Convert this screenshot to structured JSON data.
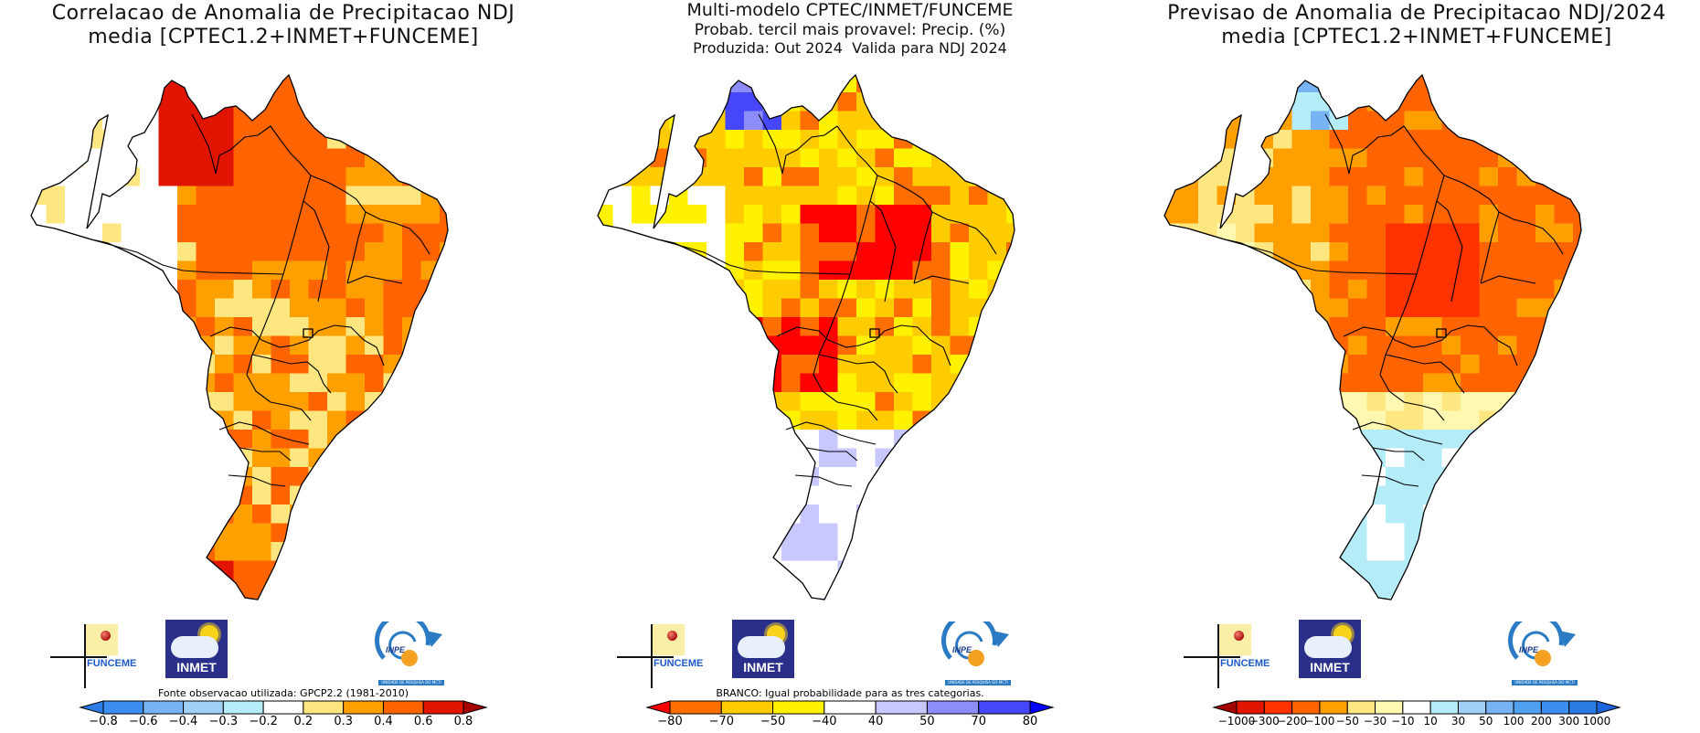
{
  "panels": [
    {
      "id": "correlation",
      "title_lines": [
        "Correlacao de Anomalia de Precipitacao NDJ",
        "media [CPTEC1.2+INMET+FUNCEME]"
      ],
      "colorbar_caption": "Fonte observacao utilizada: GPCP2.2 (1981-2010)",
      "colorbar": {
        "labels": [
          "-0.8",
          "-0.6",
          "-0.4",
          "-0.3",
          "-0.2",
          "0.2",
          "0.3",
          "0.4",
          "0.6",
          "0.8"
        ],
        "left_arrow": "#2a7be4",
        "colors": [
          "#3c8ff0",
          "#78b4f4",
          "#9ed0f8",
          "#b4ecf8",
          "#ffffff",
          "#fee680",
          "#ffa000",
          "#ff6400",
          "#e11400"
        ],
        "right_arrow": "#a50000"
      }
    },
    {
      "id": "tercile",
      "title_lines": [
        "Multi-modelo CPTEC/INMET/FUNCEME",
        "Probab. tercil mais provavel: Precip. (%)",
        "Produzida: Out 2024  Valida para NDJ 2024"
      ],
      "colorbar_caption": "BRANCO: Igual probabilidade para as tres categorias.",
      "colorbar": {
        "labels": [
          "-80",
          "-70",
          "-50",
          "-40",
          "40",
          "50",
          "70",
          "80"
        ],
        "left_arrow": "#ff0000",
        "colors": [
          "#ff6e00",
          "#ffcc00",
          "#fff200",
          "#ffffff",
          "#c8c8ff",
          "#8c8cfa",
          "#4646fa"
        ],
        "right_arrow": "#0000ff"
      }
    },
    {
      "id": "forecast",
      "title_lines": [
        "Previsao de Anomalia de Precipitacao NDJ/2024",
        "media [CPTEC1.2+INMET+FUNCEME]"
      ],
      "colorbar_caption": "",
      "colorbar": {
        "labels": [
          "-1000",
          "-300",
          "-200",
          "-100",
          "-50",
          "-30",
          "-10",
          "10",
          "30",
          "50",
          "100",
          "200",
          "300",
          "1000"
        ],
        "left_arrow": "#a50000",
        "colors": [
          "#e11400",
          "#ff3200",
          "#ff6400",
          "#ffa000",
          "#fee680",
          "#fff8b0",
          "#ffffff",
          "#b4ecf8",
          "#9ed0f8",
          "#78b4f4",
          "#50a0f0",
          "#3c8ff0",
          "#2a7be4"
        ],
        "right_arrow": "#1e64dc"
      }
    }
  ],
  "logos": {
    "funceme": "FUNCEME",
    "inmet": "INMET",
    "inpe": "INPE",
    "inpe_sub": "UNIDADE DE PESQUISA DO MCTI"
  },
  "chart_data": [
    {
      "type": "heatmap",
      "title": "Correlacao de Anomalia de Precipitacao NDJ media [CPTEC1.2+INMET+FUNCEME]",
      "region": "Brazil",
      "colorbar_levels": [
        -0.8,
        -0.6,
        -0.4,
        -0.3,
        -0.2,
        0.2,
        0.3,
        0.4,
        0.6,
        0.8
      ],
      "source": "GPCP2.2 (1981-2010)",
      "summary": {
        "Roraima": ">0.6 (0.4-0.8)",
        "Para/Amapa": "0.4-0.6",
        "Amazonas west": "<0.2 (white)",
        "Nordeste": "0.2-0.6",
        "Centro-Oeste": "0.2-0.6",
        "Sudeste": "0.2-0.4",
        "Rio Grande do Sul": "0.6-0.8"
      }
    },
    {
      "type": "heatmap",
      "title": "Multi-modelo CPTEC/INMET/FUNCEME Probab. tercil mais provavel: Precip. (%)",
      "issued": "Out 2024",
      "valid": "NDJ 2024",
      "colorbar_levels": [
        -80,
        -70,
        -50,
        -40,
        40,
        50,
        70,
        80
      ],
      "summary": {
        "Roraima": "above-normal 50-80%",
        "Para/Maranhao/Tocantins": "below-normal 70-80%+",
        "Mato Grosso": "below-normal 70-80%+",
        "Amazonas west": "equal probability (white) / below 40-50%",
        "Sul/Sudeste": "equal probability / above-normal 40-70%"
      }
    },
    {
      "type": "heatmap",
      "title": "Previsao de Anomalia de Precipitacao NDJ/2024 media [CPTEC1.2+INMET+FUNCEME]",
      "colorbar_levels": [
        -1000,
        -300,
        -200,
        -100,
        -50,
        -30,
        -10,
        10,
        30,
        50,
        100,
        200,
        300,
        1000
      ],
      "summary": {
        "Roraima": "+30 to +100",
        "Norte/Nordeste/Centro": "-100 to -300",
        "Amazonas": "-30 to -100",
        "Sudeste/Sul": "+10 to +30",
        "Mato Grosso do Sul": "-10 to +10"
      }
    }
  ]
}
